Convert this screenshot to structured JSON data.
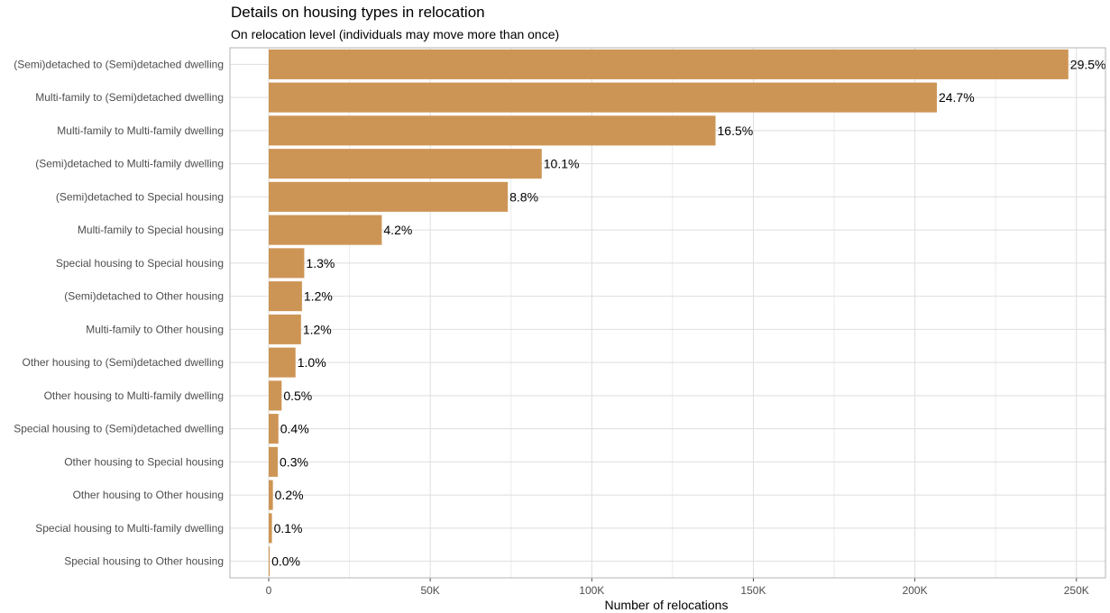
{
  "chart_data": {
    "type": "bar",
    "orientation": "horizontal",
    "title": "Details on housing types in relocation",
    "subtitle": "On relocation level (individuals may move more than once)",
    "xlabel": "Number of relocations",
    "ylabel": "",
    "xlim": [
      -12000,
      259000
    ],
    "x_ticks": [
      0,
      50000,
      100000,
      150000,
      200000,
      250000
    ],
    "x_tick_labels": [
      "0",
      "50K",
      "100K",
      "150K",
      "200K",
      "250K"
    ],
    "grid": true,
    "bar_color": "#CD9555",
    "categories": [
      "(Semi)detached to (Semi)detached dwelling",
      "Multi-family to (Semi)detached dwelling",
      "Multi-family to Multi-family dwelling",
      "(Semi)detached to Multi-family dwelling",
      "(Semi)detached to Special housing",
      "Multi-family to Special housing",
      "Special housing to Special housing",
      "(Semi)detached to Other housing",
      "Multi-family to Other housing",
      "Other housing to (Semi)detached dwelling",
      "Other housing to Multi-family dwelling",
      "Special housing to (Semi)detached dwelling",
      "Other housing to Special housing",
      "Other housing to Other housing",
      "Special housing to Multi-family dwelling",
      "Special housing to Other housing"
    ],
    "values": [
      247500,
      206800,
      138300,
      84500,
      74000,
      35000,
      11000,
      10300,
      10000,
      8300,
      4000,
      3000,
      2800,
      1300,
      1000,
      300
    ],
    "data_labels": [
      "29.5%",
      "24.7%",
      "16.5%",
      "10.1%",
      "8.8%",
      "4.2%",
      "1.3%",
      "1.2%",
      "1.2%",
      "1.0%",
      "0.5%",
      "0.4%",
      "0.3%",
      "0.2%",
      "0.1%",
      "0.0%"
    ]
  }
}
